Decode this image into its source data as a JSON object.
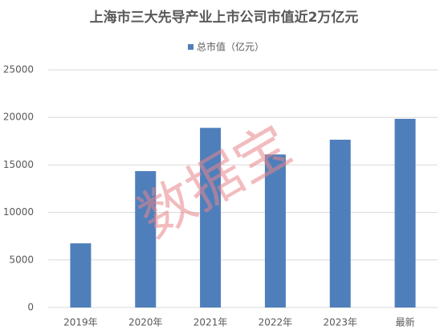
{
  "chart_data": {
    "type": "bar",
    "title": "上海市三大先导产业上市公司市值近2万亿元",
    "watermark": "数据宝",
    "categories": [
      "2019年",
      "2020年",
      "2021年",
      "2022年",
      "2023年",
      "最新"
    ],
    "series": [
      {
        "name": "总市值（亿元）",
        "color": "#4f7fbb",
        "values": [
          6750,
          14350,
          18900,
          16100,
          17650,
          19850
        ]
      }
    ],
    "ylim": [
      0,
      25000
    ],
    "yticks": [
      0,
      5000,
      10000,
      15000,
      20000,
      25000
    ],
    "grid": true
  }
}
